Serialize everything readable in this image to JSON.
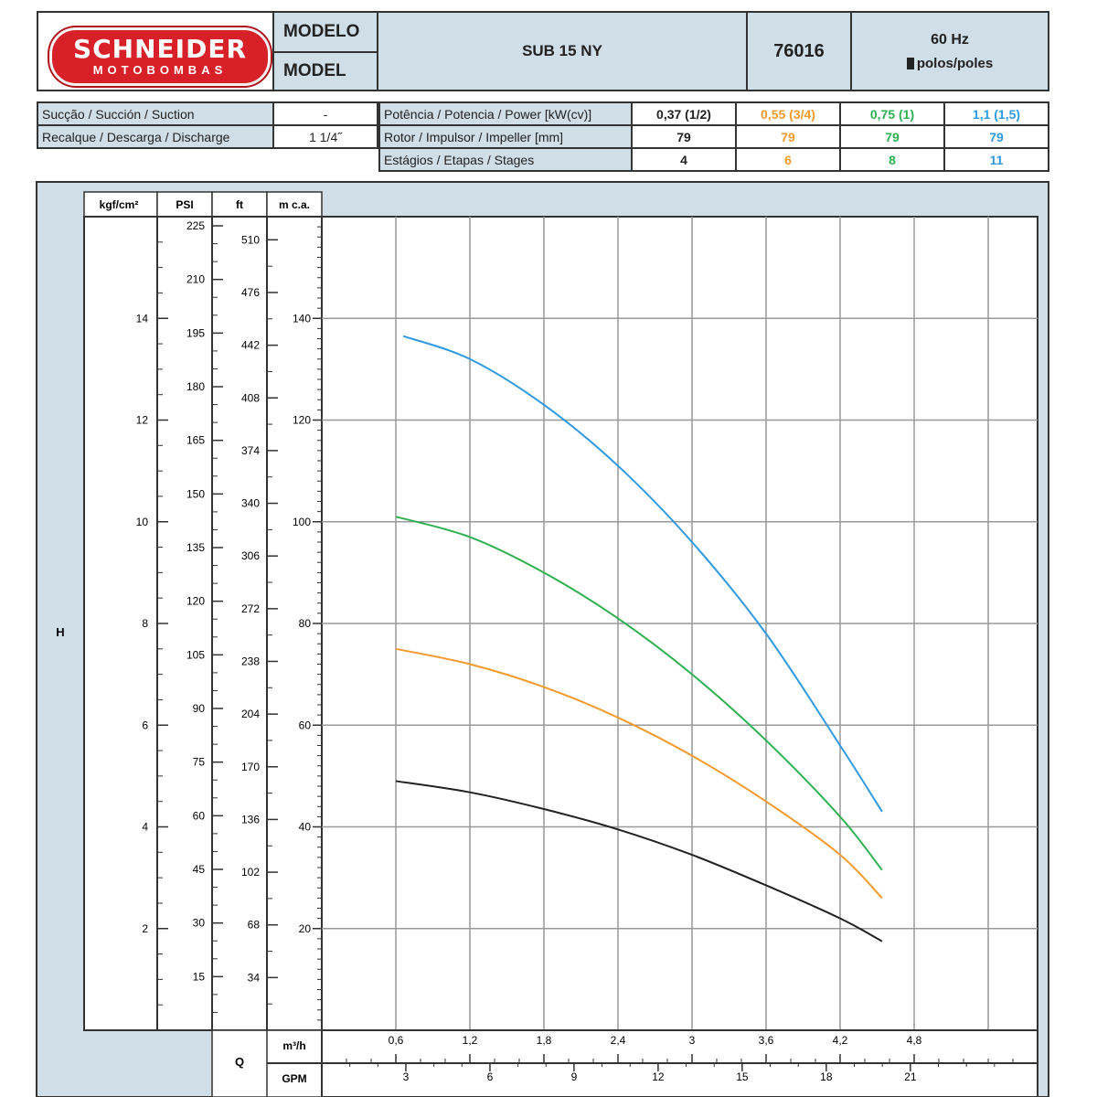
{
  "brand": {
    "name": "SCHNEIDER",
    "sub": "MOTOBOMBAS"
  },
  "header": {
    "modelo_label": "MODELO",
    "model_label": "MODEL",
    "model_name": "SUB 15 NY",
    "code": "76016",
    "frequency": "60 Hz",
    "poles": "polos/poles"
  },
  "specs": {
    "suction_label": "Sucção / Succión / Suction",
    "suction_value": "-",
    "discharge_label": "Recalque / Descarga / Discharge",
    "discharge_value": "1 1/4˝",
    "power_label": "Potência / Potencia / Power [kW(cv)]",
    "impeller_label": "Rotor / Impulsor / Impeller [mm]",
    "stages_label": "Estágios / Etapas / Stages",
    "columns": [
      {
        "power": "0,37 (1/2)",
        "impeller": "79",
        "stages": "4",
        "color": "#222222"
      },
      {
        "power": "0,55 (3/4)",
        "impeller": "79",
        "stages": "6",
        "color": "#f39a2c"
      },
      {
        "power": "0,75 (1)",
        "impeller": "79",
        "stages": "8",
        "color": "#2fb050"
      },
      {
        "power": "1,1 (1,5)",
        "impeller": "79",
        "stages": "11",
        "color": "#2f9ae0"
      }
    ]
  },
  "chart_data": {
    "type": "line",
    "ylabel": "H",
    "xlabel": "Q",
    "units": {
      "kgf": "kgf/cm²",
      "psi": "PSI",
      "ft": "ft",
      "mca": "m c.a.",
      "m3h": "m³/h",
      "gpm": "GPM"
    },
    "xlim": [
      0,
      5.8
    ],
    "ylim": [
      0,
      160
    ],
    "x_ticks": [
      "0,6",
      "1,2",
      "1,8",
      "2,4",
      "3",
      "3,6",
      "4,2",
      "4,8"
    ],
    "gpm_ticks": [
      "3",
      "6",
      "9",
      "12",
      "15",
      "18",
      "21"
    ],
    "mca_ticks": [
      "20",
      "40",
      "60",
      "80",
      "100",
      "120",
      "140"
    ],
    "kgf_ticks": [
      "2",
      "4",
      "6",
      "8",
      "10",
      "12",
      "14"
    ],
    "psi_ticks": [
      "15",
      "30",
      "45",
      "60",
      "75",
      "90",
      "105",
      "120",
      "135",
      "150",
      "165",
      "180",
      "195",
      "210",
      "225"
    ],
    "ft_ticks": [
      "34",
      "68",
      "102",
      "136",
      "170",
      "204",
      "238",
      "272",
      "306",
      "340",
      "374",
      "408",
      "442",
      "476",
      "510"
    ],
    "series": [
      {
        "color": "#222222",
        "x": [
          0.6,
          1.2,
          1.8,
          2.4,
          3.0,
          3.6,
          4.2,
          4.54
        ],
        "y": [
          49,
          46.8,
          43.5,
          39.5,
          34.5,
          28.5,
          22,
          17.5
        ]
      },
      {
        "color": "#f39a2c",
        "x": [
          0.6,
          1.2,
          1.8,
          2.4,
          3.0,
          3.6,
          4.2,
          4.54
        ],
        "y": [
          75,
          72,
          67.5,
          61.5,
          54,
          45,
          34.5,
          26
        ]
      },
      {
        "color": "#2fb050",
        "x": [
          0.6,
          1.2,
          1.8,
          2.4,
          3.0,
          3.6,
          4.2,
          4.54
        ],
        "y": [
          101,
          97,
          90,
          81,
          70,
          57,
          42,
          31.5
        ]
      },
      {
        "color": "#2f9ae0",
        "x": [
          0.66,
          1.2,
          1.8,
          2.4,
          3.0,
          3.6,
          4.2,
          4.54
        ],
        "y": [
          136.5,
          132,
          123,
          111,
          96,
          78,
          56,
          43
        ]
      }
    ]
  }
}
